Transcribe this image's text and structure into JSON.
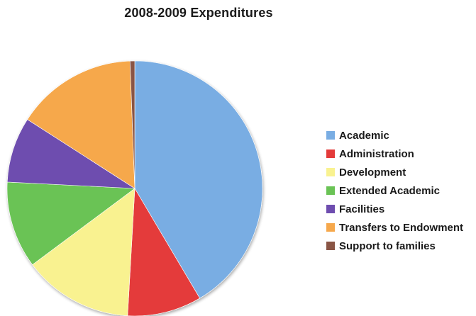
{
  "chart_data": {
    "type": "pie",
    "title": "2008-2009 Expenditures",
    "legend_position": "right",
    "slices": [
      {
        "label": "Academic",
        "value": 41.5,
        "color": "#79ADE3"
      },
      {
        "label": "Administration",
        "value": 9.4,
        "color": "#E43B3A"
      },
      {
        "label": "Development",
        "value": 13.9,
        "color": "#F9F290"
      },
      {
        "label": "Extended Academic",
        "value": 11.0,
        "color": "#6AC355"
      },
      {
        "label": "Facilities",
        "value": 8.3,
        "color": "#6E4DAF"
      },
      {
        "label": "Transfers to Endowment",
        "value": 15.3,
        "color": "#F6A84C"
      },
      {
        "label": "Support to families",
        "value": 0.6,
        "color": "#8A5545"
      }
    ]
  }
}
